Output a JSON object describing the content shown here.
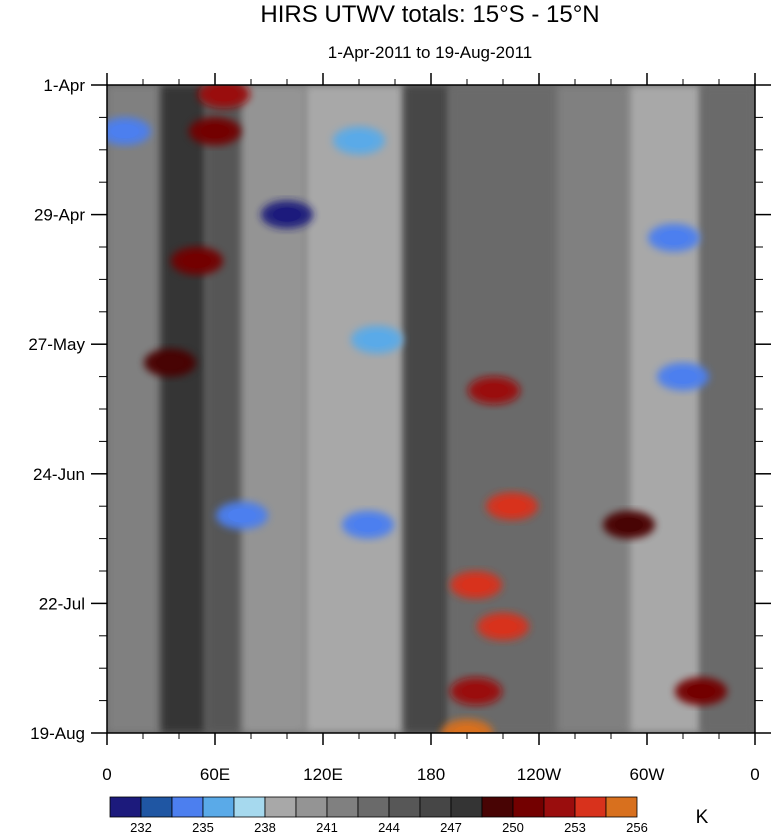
{
  "chart_data": {
    "type": "heatmap",
    "title": "HIRS UTWV totals: 15°S - 15°N",
    "subtitle": "1-Apr-2011 to 19-Aug-2011",
    "xlabel": "",
    "ylabel": "",
    "x_ticks": [
      "0",
      "60E",
      "120E",
      "180",
      "120W",
      "60W",
      "0"
    ],
    "x_tick_values": [
      0,
      60,
      120,
      180,
      240,
      300,
      360
    ],
    "xlim": [
      0,
      360
    ],
    "y_ticks": [
      "1-Apr",
      "29-Apr",
      "27-May",
      "24-Jun",
      "22-Jul",
      "19-Aug"
    ],
    "y_tick_values": [
      0,
      28,
      56,
      84,
      112,
      140
    ],
    "ylim": [
      0,
      140
    ],
    "colorbar": {
      "unit": "K",
      "levels": [
        232,
        233.5,
        235,
        236.5,
        238,
        239.5,
        241,
        242.5,
        244,
        245.5,
        247,
        248.5,
        250,
        251.5,
        253,
        254.5,
        256
      ],
      "labels": [
        "232",
        "235",
        "238",
        "241",
        "244",
        "247",
        "250",
        "253",
        "256"
      ],
      "colors": [
        "#1c1a7c",
        "#1f56a3",
        "#4c7fef",
        "#5aaae8",
        "#a6d9ee",
        "#a8a8a8",
        "#949494",
        "#808080",
        "#6a6a6a",
        "#575757",
        "#464646",
        "#343434",
        "#480404",
        "#730000",
        "#9a0d0d",
        "#d8321c",
        "#d8701e"
      ]
    },
    "features": [
      {
        "lon": 60,
        "day": 10,
        "value": 252
      },
      {
        "lon": 65,
        "day": 2,
        "value": 253
      },
      {
        "lon": 100,
        "day": 28,
        "value": 233
      },
      {
        "lon": 10,
        "day": 10,
        "value": 236
      },
      {
        "lon": 140,
        "day": 12,
        "value": 237
      },
      {
        "lon": 150,
        "day": 55,
        "value": 237
      },
      {
        "lon": 215,
        "day": 66,
        "value": 254
      },
      {
        "lon": 75,
        "day": 93,
        "value": 235
      },
      {
        "lon": 145,
        "day": 95,
        "value": 235
      },
      {
        "lon": 225,
        "day": 91,
        "value": 255
      },
      {
        "lon": 205,
        "day": 108,
        "value": 255
      },
      {
        "lon": 220,
        "day": 117,
        "value": 255
      },
      {
        "lon": 205,
        "day": 131,
        "value": 254
      },
      {
        "lon": 200,
        "day": 140,
        "value": 256
      },
      {
        "lon": 320,
        "day": 63,
        "value": 235
      },
      {
        "lon": 315,
        "day": 33,
        "value": 236
      },
      {
        "lon": 50,
        "day": 38,
        "value": 252
      },
      {
        "lon": 35,
        "day": 60,
        "value": 251
      },
      {
        "lon": 330,
        "day": 131,
        "value": 252
      },
      {
        "lon": 290,
        "day": 95,
        "value": 251
      }
    ]
  }
}
